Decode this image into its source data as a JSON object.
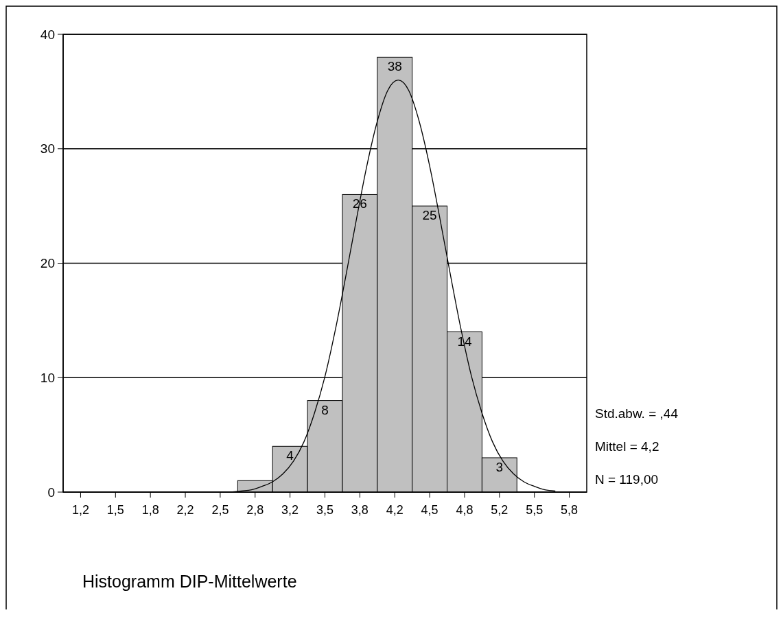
{
  "chart_data": {
    "type": "histogram",
    "title": "Histogramm DIP-Mittelwerte",
    "bins": [
      2.6667,
      3.0,
      3.3333,
      3.6667,
      4.0,
      4.3333,
      4.6667,
      5.0,
      5.3333
    ],
    "values": [
      1,
      4,
      8,
      26,
      38,
      25,
      14,
      3
    ],
    "value_labels": [
      null,
      "4",
      "8",
      "26",
      "38",
      "25",
      "14",
      "3"
    ],
    "color": "#c0c0c0",
    "series": [
      {
        "type": "line",
        "color": "#000000",
        "x": [
          2.6,
          2.7,
          2.8,
          2.9,
          3.0,
          3.1,
          3.2,
          3.3,
          3.4,
          3.5,
          3.6,
          3.7,
          3.8,
          3.9,
          4.0,
          4.1,
          4.2,
          4.3,
          4.4,
          4.5,
          4.6,
          4.7,
          4.8,
          4.9,
          5.0,
          5.1,
          5.2,
          5.3,
          5.4,
          5.5,
          5.6,
          5.7
        ],
        "values": [
          0.0,
          0.1,
          0.2,
          0.5,
          0.9,
          1.6,
          2.7,
          4.4,
          6.9,
          10.1,
          14.2,
          18.9,
          23.8,
          28.5,
          32.4,
          35.1,
          36.0,
          35.1,
          32.4,
          28.5,
          23.8,
          18.9,
          14.2,
          10.1,
          6.9,
          4.4,
          2.7,
          1.6,
          0.9,
          0.5,
          0.2,
          0.1
        ]
      }
    ],
    "xlim": [
      1,
      6
    ],
    "xticks": [
      {
        "value": 1.1667,
        "label": "1,2"
      },
      {
        "value": 1.5,
        "label": "1,5"
      },
      {
        "value": 1.8333,
        "label": "1,8"
      },
      {
        "value": 2.1667,
        "label": "2,2"
      },
      {
        "value": 2.5,
        "label": "2,5"
      },
      {
        "value": 2.8333,
        "label": "2,8"
      },
      {
        "value": 3.1667,
        "label": "3,2"
      },
      {
        "value": 3.5,
        "label": "3,5"
      },
      {
        "value": 3.8333,
        "label": "3,8"
      },
      {
        "value": 4.1667,
        "label": "4,2"
      },
      {
        "value": 4.5,
        "label": "4,5"
      },
      {
        "value": 4.8333,
        "label": "4,8"
      },
      {
        "value": 5.1667,
        "label": "5,2"
      },
      {
        "value": 5.5,
        "label": "5,5"
      },
      {
        "value": 5.8333,
        "label": "5,8"
      }
    ],
    "ylim": [
      0,
      40
    ],
    "yticks": [
      0,
      10,
      20,
      30,
      40
    ],
    "grid": "y",
    "annotations": [
      "Std.abw. = ,44",
      "Mittel = 4,2",
      "N = 119,00"
    ]
  }
}
